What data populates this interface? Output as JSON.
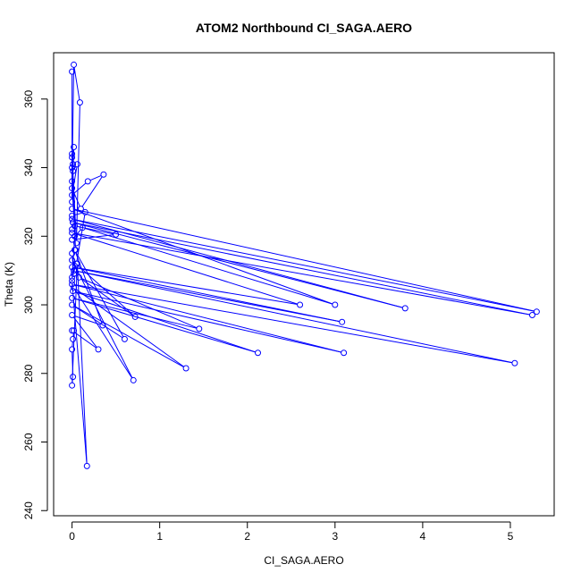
{
  "chart_data": {
    "type": "line",
    "title": "ATOM2 Northbound CI_SAGA.AERO",
    "xlabel": "CI_SAGA.AERO",
    "ylabel": "Theta (K)",
    "xlim": [
      -0.21,
      5.5
    ],
    "ylim": [
      238.5,
      373.5
    ],
    "xticks": [
      0,
      1,
      2,
      3,
      4,
      5
    ],
    "yticks": [
      240,
      260,
      280,
      300,
      320,
      340,
      360
    ],
    "grid": false,
    "color": "#0000ff",
    "series": [
      {
        "points": [
          [
            0.0,
            368.0
          ],
          [
            0.0,
            330.0
          ],
          [
            0.02,
            346.0
          ],
          [
            0.0,
            336.0
          ],
          [
            0.02,
            370.0
          ],
          [
            0.09,
            359.0
          ],
          [
            0.05,
            318.0
          ],
          [
            0.0,
            344.0
          ],
          [
            0.01,
            339.0
          ],
          [
            0.06,
            341.0
          ],
          [
            0.0,
            332.0
          ],
          [
            0.18,
            336.0
          ],
          [
            0.36,
            338.0
          ],
          [
            0.1,
            328.0
          ],
          [
            0.0,
            334.0
          ],
          [
            0.03,
            323.0
          ],
          [
            0.5,
            320.5
          ],
          [
            0.0,
            319.0
          ],
          [
            0.12,
            322.5
          ],
          [
            3.0,
            300.0
          ],
          [
            0.0,
            328.0
          ],
          [
            5.3,
            298.0
          ],
          [
            0.0,
            325.0
          ],
          [
            3.8,
            299.0
          ],
          [
            0.01,
            324.0
          ],
          [
            5.25,
            297.0
          ],
          [
            0.0,
            321.0
          ],
          [
            2.6,
            300.0
          ],
          [
            0.0,
            311.0
          ],
          [
            3.08,
            295.0
          ],
          [
            0.02,
            310.0
          ],
          [
            5.05,
            283.0
          ],
          [
            0.0,
            306.0
          ],
          [
            3.1,
            286.0
          ],
          [
            0.01,
            304.0
          ],
          [
            2.12,
            286.0
          ],
          [
            0.0,
            302.0
          ],
          [
            1.45,
            293.0
          ],
          [
            0.08,
            308.0
          ],
          [
            0.72,
            296.5
          ],
          [
            0.0,
            313.0
          ],
          [
            0.7,
            278.0
          ],
          [
            0.02,
            305.0
          ],
          [
            1.3,
            281.5
          ],
          [
            0.0,
            300.0
          ],
          [
            0.6,
            290.0
          ],
          [
            0.03,
            316.0
          ],
          [
            0.35,
            294.0
          ],
          [
            0.0,
            297.0
          ],
          [
            0.3,
            287.0
          ],
          [
            0.0,
            292.5
          ],
          [
            0.02,
            292.5
          ],
          [
            0.01,
            290.0
          ],
          [
            0.0,
            287.0
          ],
          [
            0.01,
            279.0
          ],
          [
            0.0,
            276.5
          ],
          [
            0.06,
            312.0
          ],
          [
            0.17,
            253.0
          ],
          [
            0.0,
            307.0
          ],
          [
            0.03,
            320.0
          ],
          [
            0.0,
            343.0
          ],
          [
            0.01,
            341.0
          ],
          [
            0.0,
            340.0
          ],
          [
            0.04,
            316.0
          ],
          [
            0.0,
            315.0
          ],
          [
            0.02,
            309.0
          ],
          [
            0.0,
            308.0
          ],
          [
            0.05,
            312.0
          ],
          [
            0.15,
            327.0
          ],
          [
            0.0,
            326.0
          ],
          [
            0.01,
            324.0
          ],
          [
            0.0,
            322.0
          ]
        ]
      }
    ]
  }
}
